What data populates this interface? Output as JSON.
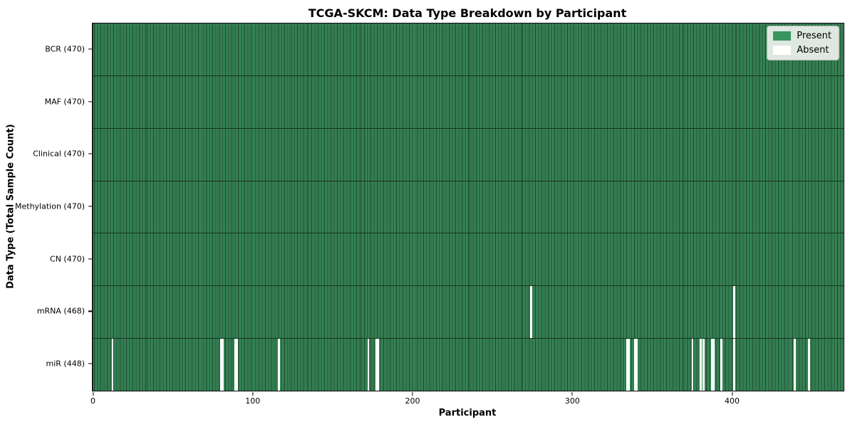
{
  "chart_data": {
    "type": "heatmap",
    "title": "TCGA-SKCM: Data Type Breakdown by Participant",
    "xlabel": "Participant",
    "ylabel": "Data Type (Total Sample Count)",
    "xlim": [
      0,
      470
    ],
    "x_ticks": [
      0,
      100,
      200,
      300,
      400
    ],
    "n_participants": 470,
    "grid": false,
    "colors": {
      "present": "#3a945f",
      "absent": "#ffffff",
      "cell_edge": "#1c3927",
      "row_divider": "#17321f",
      "plot_border": "#0b0b0b",
      "legend_bg": "#dfe8e0",
      "legend_border": "#a9b4a9",
      "text": "#000000"
    },
    "legend": {
      "position": "top-right",
      "entries": [
        {
          "label": "Present",
          "color": "#3a945f"
        },
        {
          "label": "Absent",
          "color": "#ffffff"
        }
      ]
    },
    "rows": [
      {
        "label": "BCR (470)",
        "data_type": "BCR",
        "present_count": 470,
        "absent_participants": []
      },
      {
        "label": "MAF (470)",
        "data_type": "MAF",
        "present_count": 470,
        "absent_participants": []
      },
      {
        "label": "Clinical (470)",
        "data_type": "Clinical",
        "present_count": 470,
        "absent_participants": []
      },
      {
        "label": "Methylation (470)",
        "data_type": "Methylation",
        "present_count": 470,
        "absent_participants": []
      },
      {
        "label": "CN (470)",
        "data_type": "CN",
        "present_count": 470,
        "absent_participants": []
      },
      {
        "label": "mRNA (468)",
        "data_type": "mRNA",
        "present_count": 468,
        "absent_participants": [
          274,
          401
        ]
      },
      {
        "label": "miR (448)",
        "data_type": "miR",
        "present_count": 448,
        "absent_participants": [
          12,
          80,
          81,
          89,
          90,
          116,
          172,
          177,
          178,
          334,
          335,
          339,
          340,
          375,
          380,
          382,
          387,
          388,
          393,
          401,
          439,
          448
        ]
      }
    ]
  }
}
